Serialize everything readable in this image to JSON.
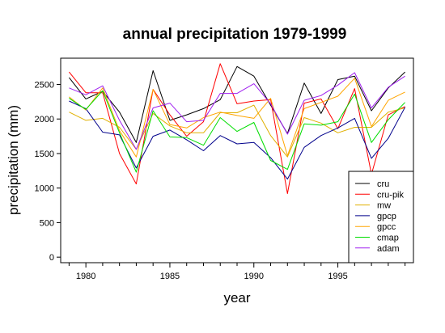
{
  "chart_data": {
    "type": "line",
    "title": "annual precipitation 1979-1999",
    "xlabel": "year",
    "ylabel": "precipitation (mm)",
    "xlim": [
      1978.5,
      1999.5
    ],
    "ylim": [
      -80,
      2880
    ],
    "xticks": [
      1980,
      1985,
      1990,
      1995
    ],
    "yticks": [
      0,
      500,
      1000,
      1500,
      2000,
      2500
    ],
    "grid": false,
    "legend_position": "bottom-right",
    "x": [
      1979,
      1980,
      1981,
      1982,
      1983,
      1984,
      1985,
      1986,
      1987,
      1988,
      1989,
      1990,
      1991,
      1992,
      1993,
      1994,
      1995,
      1996,
      1997,
      1998,
      1999
    ],
    "series": [
      {
        "name": "cru",
        "color": "#000000",
        "values": [
          2600,
          2290,
          2400,
          2100,
          1660,
          2700,
          1980,
          2060,
          2150,
          2280,
          2760,
          2620,
          2200,
          1790,
          2520,
          2080,
          2570,
          2620,
          2120,
          2450,
          2680
        ]
      },
      {
        "name": "cru-pik",
        "color": "#ff0000",
        "values": [
          2680,
          2380,
          2380,
          1500,
          1060,
          2430,
          2060,
          1750,
          1960,
          2800,
          2220,
          2260,
          2280,
          920,
          2230,
          2290,
          1860,
          2440,
          1200,
          2060,
          2180
        ]
      },
      {
        "name": "mw",
        "color": "#e0b000",
        "values": [
          2100,
          1980,
          2010,
          1880,
          1560,
          2080,
          1900,
          1800,
          1800,
          2090,
          2090,
          2200,
          1760,
          1450,
          2020,
          1940,
          1800,
          1880,
          1880,
          2100,
          2160
        ]
      },
      {
        "name": "gpcp",
        "color": "#00008b",
        "values": [
          2260,
          2150,
          1810,
          1770,
          1290,
          1750,
          1840,
          1700,
          1540,
          1760,
          1640,
          1660,
          1440,
          1130,
          1590,
          1760,
          1870,
          2010,
          1430,
          1720,
          2170
        ]
      },
      {
        "name": "gpcc",
        "color": "#ffa500",
        "values": [
          2320,
          2130,
          2450,
          1830,
          1450,
          2430,
          1920,
          1870,
          2020,
          2100,
          2050,
          2010,
          2300,
          1470,
          2150,
          2240,
          2330,
          2590,
          1890,
          2270,
          2390
        ]
      },
      {
        "name": "cmap",
        "color": "#00dd00",
        "values": [
          2300,
          2140,
          2410,
          1800,
          1230,
          2120,
          1740,
          1730,
          1620,
          2020,
          1820,
          1950,
          1400,
          1270,
          1930,
          1910,
          1960,
          2360,
          1660,
          1990,
          2240
        ]
      },
      {
        "name": "adam",
        "color": "#a020f0",
        "values": [
          2450,
          2350,
          2480,
          1980,
          1560,
          2160,
          2230,
          1960,
          1980,
          2370,
          2370,
          2510,
          2220,
          1780,
          2270,
          2340,
          2490,
          2670,
          2160,
          2460,
          2620
        ]
      }
    ]
  }
}
